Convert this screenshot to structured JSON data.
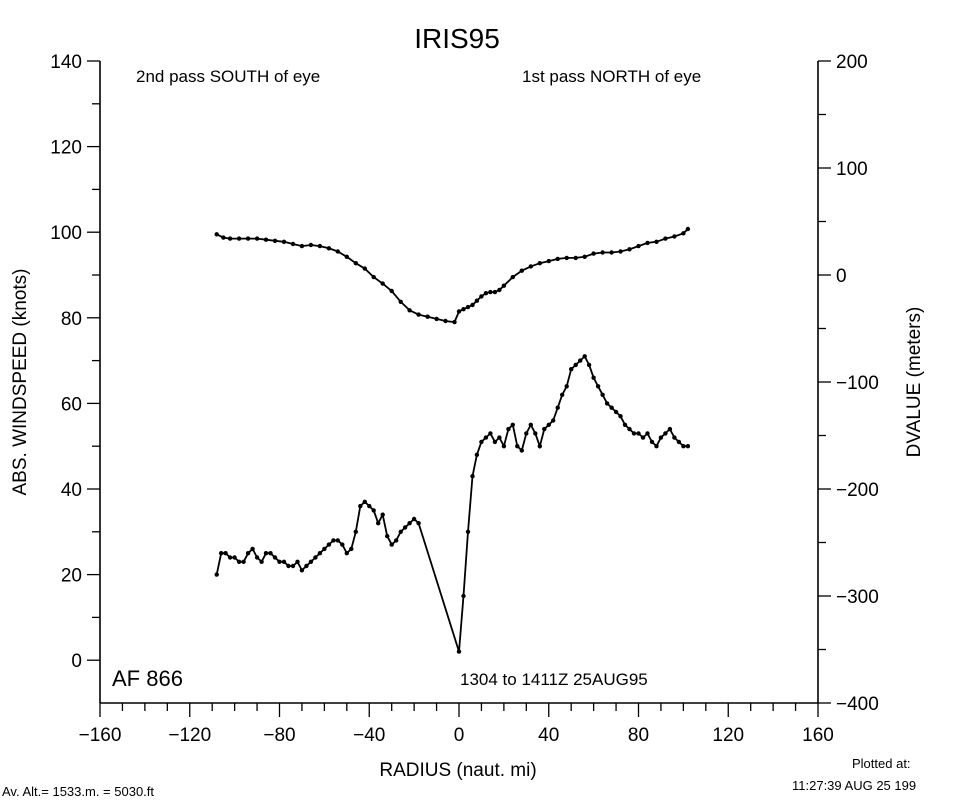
{
  "chart_data": {
    "type": "line",
    "title": "IRIS95",
    "xlabel": "RADIUS (naut. mi)",
    "ylabel": "ABS. WINDSPEED (knots)",
    "y2label": "DVALUE (meters)",
    "xlim": [
      -160,
      160
    ],
    "ylim": [
      -10,
      140
    ],
    "y2lim": [
      -400,
      200
    ],
    "xticks": [
      -160,
      -120,
      -80,
      -40,
      0,
      40,
      80,
      120,
      160
    ],
    "xtick_labels": [
      "−160",
      "−120",
      "−80",
      "−40",
      "0",
      "40",
      "80",
      "120",
      "160"
    ],
    "yticks": [
      0,
      20,
      40,
      60,
      80,
      100,
      120,
      140
    ],
    "ytick_labels": [
      "0",
      "20",
      "40",
      "60",
      "80",
      "100",
      "120",
      "140"
    ],
    "y2ticks": [
      -400,
      -300,
      -200,
      -100,
      0,
      100,
      200
    ],
    "y2tick_labels": [
      "−400",
      "−300",
      "−200",
      "−100",
      "0",
      "100",
      "200"
    ],
    "grid": false,
    "annotations": {
      "south": "2nd pass SOUTH of eye",
      "north": "1st pass NORTH of eye",
      "flight": "AF 866",
      "time": "1304 to 1411Z 25AUG95"
    },
    "series": [
      {
        "axis": "right",
        "x": [
          -108,
          -105,
          -102,
          -98,
          -94,
          -90,
          -86,
          -82,
          -78,
          -74,
          -70,
          -66,
          -62,
          -58,
          -54,
          -50,
          -46,
          -42,
          -38,
          -34,
          -30,
          -26,
          -22,
          -18,
          -14,
          -10,
          -6,
          -2,
          0,
          2,
          4,
          6,
          8,
          10,
          12,
          14,
          16,
          18,
          20,
          24,
          28,
          32,
          36,
          40,
          44,
          48,
          52,
          56,
          60,
          64,
          68,
          72,
          76,
          80,
          84,
          88,
          92,
          96,
          100,
          102
        ],
        "values": [
          38,
          35,
          34,
          34,
          34,
          34,
          33,
          32,
          31,
          29,
          27,
          28,
          27,
          25,
          22,
          17,
          11,
          6,
          -2,
          -8,
          -15,
          -25,
          -33,
          -37,
          -39,
          -41,
          -43,
          -44,
          -34,
          -32,
          -30,
          -28,
          -24,
          -20,
          -17,
          -16,
          -16,
          -14,
          -10,
          -2,
          4,
          8,
          11,
          13,
          15,
          16,
          16,
          17,
          20,
          21,
          21,
          22,
          24,
          27,
          30,
          31,
          34,
          36,
          39,
          43
        ]
      },
      {
        "axis": "left",
        "x": [
          -108,
          -106,
          -104,
          -102,
          -100,
          -98,
          -96,
          -94,
          -92,
          -90,
          -88,
          -86,
          -84,
          -82,
          -80,
          -78,
          -76,
          -74,
          -72,
          -70,
          -68,
          -66,
          -64,
          -62,
          -60,
          -58,
          -56,
          -54,
          -52,
          -50,
          -48,
          -46,
          -44,
          -42,
          -40,
          -38,
          -36,
          -34,
          -32,
          -30,
          -28,
          -26,
          -24,
          -22,
          -20,
          -18,
          0,
          2,
          4,
          6,
          8,
          10,
          12,
          14,
          16,
          18,
          20,
          22,
          24,
          26,
          28,
          30,
          32,
          34,
          36,
          38,
          40,
          42,
          44,
          46,
          48,
          50,
          52,
          54,
          56,
          58,
          60,
          62,
          64,
          66,
          68,
          70,
          72,
          74,
          76,
          78,
          80,
          82,
          84,
          86,
          88,
          90,
          92,
          94,
          96,
          98,
          100,
          102
        ],
        "values": [
          20,
          25,
          25,
          24,
          24,
          23,
          23,
          25,
          26,
          24,
          23,
          25,
          25,
          24,
          23,
          23,
          22,
          22,
          23,
          21,
          22,
          23,
          24,
          25,
          26,
          27,
          28,
          28,
          27,
          25,
          26,
          30,
          36,
          37,
          36,
          35,
          32,
          34,
          29,
          27,
          28,
          30,
          31,
          32,
          33,
          32,
          2,
          15,
          30,
          43,
          48,
          51,
          52,
          53,
          51,
          52,
          50,
          54,
          55,
          50,
          49,
          53,
          55,
          53,
          50,
          54,
          55,
          56,
          59,
          62,
          64,
          68,
          69,
          70,
          71,
          69,
          66,
          64,
          62,
          60,
          59,
          58,
          57,
          55,
          54,
          53,
          53,
          52,
          53,
          51,
          50,
          52,
          53,
          54,
          52,
          51,
          50,
          50
        ]
      }
    ]
  },
  "footer": {
    "altitude": "Av. Alt.= 1533.m. =  5030.ft",
    "plotted_label": "Plotted at:",
    "plotted_time": "11:27:39 AUG 25 199"
  }
}
